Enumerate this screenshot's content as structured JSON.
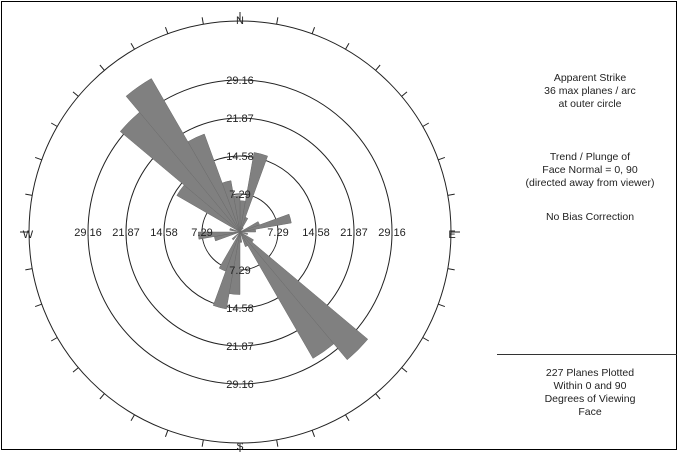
{
  "chart_data": {
    "type": "rose",
    "directions": {
      "north": "N",
      "south": "S",
      "east": "E",
      "west": "W"
    },
    "rings": [
      7.29,
      14.58,
      21.87,
      29.16
    ],
    "ring_labels": [
      "7.29",
      "14.58",
      "21.87",
      "29.16"
    ],
    "horizontal_labels": [
      "29.16",
      "21.87",
      "14.58",
      "7.29",
      "7.29",
      "14.58",
      "21.87",
      "29.16"
    ],
    "max_scale": 36,
    "bin_width_deg": 10,
    "bins": [
      {
        "from": 0,
        "to": 10,
        "value": 6
      },
      {
        "from": 10,
        "to": 20,
        "value": 15.5
      },
      {
        "from": 20,
        "to": 30,
        "value": 3
      },
      {
        "from": 30,
        "to": 40,
        "value": 1
      },
      {
        "from": 60,
        "to": 70,
        "value": 4
      },
      {
        "from": 70,
        "to": 80,
        "value": 10
      },
      {
        "from": 80,
        "to": 90,
        "value": 3
      },
      {
        "from": 100,
        "to": 110,
        "value": 1.5
      },
      {
        "from": 120,
        "to": 130,
        "value": 3
      },
      {
        "from": 130,
        "to": 140,
        "value": 32
      },
      {
        "from": 140,
        "to": 150,
        "value": 28
      },
      {
        "from": 150,
        "to": 160,
        "value": 3
      },
      {
        "from": 170,
        "to": 180,
        "value": 2
      },
      {
        "from": 180,
        "to": 190,
        "value": 12
      },
      {
        "from": 190,
        "to": 200,
        "value": 15
      },
      {
        "from": 200,
        "to": 210,
        "value": 8
      },
      {
        "from": 220,
        "to": 230,
        "value": 2
      },
      {
        "from": 250,
        "to": 260,
        "value": 5
      },
      {
        "from": 260,
        "to": 270,
        "value": 8
      },
      {
        "from": 280,
        "to": 290,
        "value": 2
      },
      {
        "from": 300,
        "to": 310,
        "value": 14
      },
      {
        "from": 310,
        "to": 320,
        "value": 30
      },
      {
        "from": 320,
        "to": 330,
        "value": 34
      },
      {
        "from": 330,
        "to": 340,
        "value": 20
      },
      {
        "from": 340,
        "to": 350,
        "value": 10
      },
      {
        "from": 350,
        "to": 360,
        "value": 7
      }
    ],
    "bar_color": "#808080"
  },
  "side_panel": {
    "title_lines": [
      "Apparent Strike",
      "36 max planes / arc",
      "at outer circle"
    ],
    "trend_lines": [
      "Trend / Plunge of",
      "Face Normal =  0, 90",
      "(directed away from viewer)"
    ],
    "bias_line": "No Bias Correction",
    "footer_lines": [
      "227 Planes Plotted",
      "Within 0 and 90",
      "Degrees of Viewing",
      "Face"
    ]
  }
}
